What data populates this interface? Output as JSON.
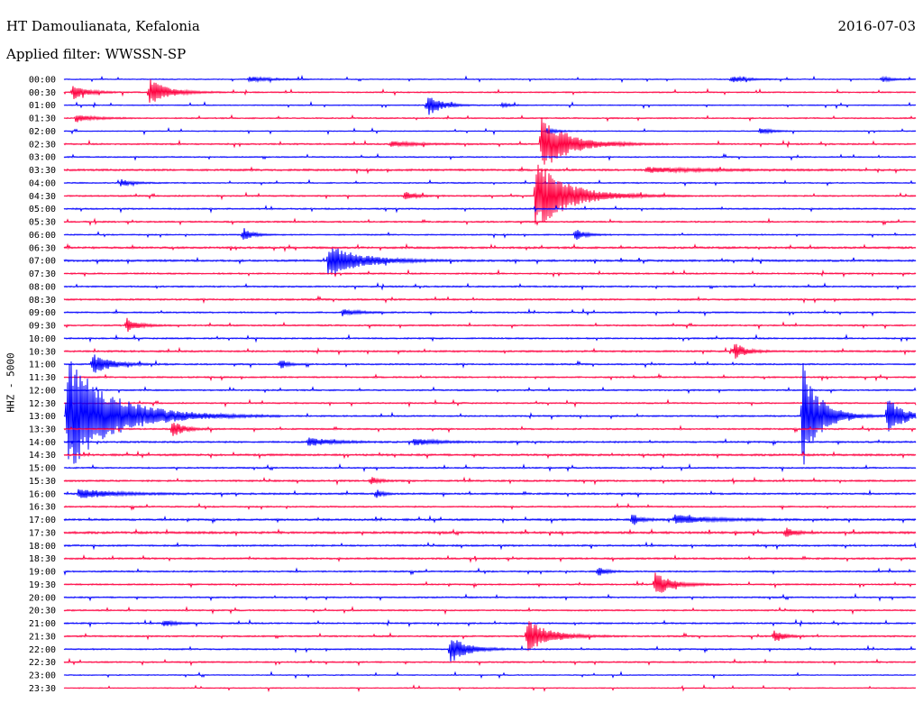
{
  "header": {
    "station": "HT Damoulianata, Kefalonia",
    "date": "2016-07-03",
    "filter": "Applied filter: WWSSN-SP"
  },
  "channel_label": "HHZ - 5000",
  "colors": {
    "even_rows": "#0000ff",
    "odd_rows": "#ff0040",
    "background": "#ffffff"
  },
  "chart_data": {
    "type": "line",
    "title": "HT Damoulianata, Kefalonia",
    "ylabel": "HHZ - 5000",
    "row_labels": [
      "00:00",
      "00:30",
      "01:00",
      "01:30",
      "02:00",
      "02:30",
      "03:00",
      "03:30",
      "04:00",
      "04:30",
      "05:00",
      "05:30",
      "06:00",
      "06:30",
      "07:00",
      "07:30",
      "08:00",
      "08:30",
      "09:00",
      "09:30",
      "10:00",
      "10:30",
      "11:00",
      "11:30",
      "12:00",
      "12:30",
      "13:00",
      "13:30",
      "14:00",
      "14:30",
      "15:00",
      "15:30",
      "16:00",
      "16:30",
      "17:00",
      "17:30",
      "18:00",
      "18:30",
      "19:00",
      "19:30",
      "20:00",
      "20:30",
      "21:00",
      "21:30",
      "22:00",
      "22:30",
      "23:00",
      "23:30"
    ],
    "row_minutes": 30,
    "x_range_minutes": [
      0,
      30
    ],
    "noise": [
      0.4,
      0.5,
      0.4,
      0.5,
      0.4,
      0.6,
      0.5,
      0.8,
      0.5,
      0.6,
      0.6,
      0.6,
      0.5,
      0.8,
      0.8,
      0.6,
      0.6,
      0.7,
      0.6,
      0.6,
      0.6,
      0.7,
      0.6,
      0.6,
      0.6,
      0.6,
      0.6,
      0.6,
      0.7,
      0.8,
      0.6,
      0.7,
      0.7,
      0.6,
      0.8,
      0.9,
      0.7,
      0.7,
      0.6,
      0.6,
      0.6,
      0.6,
      0.6,
      0.6,
      0.6,
      0.6,
      0.4,
      0.4
    ],
    "events": [
      {
        "row": "00:00",
        "minute": 6.5,
        "amplitude": 3,
        "duration": 1.2
      },
      {
        "row": "00:00",
        "minute": 23.5,
        "amplitude": 4,
        "duration": 0.8
      },
      {
        "row": "00:00",
        "minute": 28.8,
        "amplitude": 3,
        "duration": 0.6
      },
      {
        "row": "00:30",
        "minute": 0.3,
        "amplitude": 8,
        "duration": 0.8
      },
      {
        "row": "00:30",
        "minute": 3.0,
        "amplitude": 15,
        "duration": 1.0
      },
      {
        "row": "01:00",
        "minute": 12.8,
        "amplitude": 14,
        "duration": 0.7
      },
      {
        "row": "01:00",
        "minute": 15.4,
        "amplitude": 3,
        "duration": 0.4
      },
      {
        "row": "01:30",
        "minute": 0.4,
        "amplitude": 4,
        "duration": 1.0
      },
      {
        "row": "02:00",
        "minute": 17.0,
        "amplitude": 3,
        "duration": 0.6
      },
      {
        "row": "02:00",
        "minute": 24.5,
        "amplitude": 4,
        "duration": 0.6
      },
      {
        "row": "02:30",
        "minute": 16.8,
        "amplitude": 32,
        "duration": 1.5
      },
      {
        "row": "02:30",
        "minute": 11.5,
        "amplitude": 3,
        "duration": 1.5
      },
      {
        "row": "03:30",
        "minute": 20.5,
        "amplitude": 3,
        "duration": 3.0
      },
      {
        "row": "04:00",
        "minute": 2.0,
        "amplitude": 4,
        "duration": 0.6
      },
      {
        "row": "04:30",
        "minute": 16.6,
        "amplitude": 40,
        "duration": 1.8
      },
      {
        "row": "04:30",
        "minute": 12.0,
        "amplitude": 6,
        "duration": 0.5
      },
      {
        "row": "06:00",
        "minute": 6.3,
        "amplitude": 8,
        "duration": 0.5
      },
      {
        "row": "06:00",
        "minute": 18.0,
        "amplitude": 7,
        "duration": 0.5
      },
      {
        "row": "07:00",
        "minute": 9.3,
        "amplitude": 18,
        "duration": 1.8
      },
      {
        "row": "09:00",
        "minute": 9.8,
        "amplitude": 4,
        "duration": 0.8
      },
      {
        "row": "09:30",
        "minute": 2.2,
        "amplitude": 9,
        "duration": 0.6
      },
      {
        "row": "10:30",
        "minute": 23.6,
        "amplitude": 10,
        "duration": 0.6
      },
      {
        "row": "11:00",
        "minute": 1.0,
        "amplitude": 12,
        "duration": 1.0
      },
      {
        "row": "11:00",
        "minute": 7.6,
        "amplitude": 6,
        "duration": 0.4
      },
      {
        "row": "13:00",
        "minute": 0.1,
        "amplitude": 70,
        "duration": 2.5
      },
      {
        "row": "13:00",
        "minute": 26.0,
        "amplitude": 60,
        "duration": 1.0
      },
      {
        "row": "13:00",
        "minute": 29.0,
        "amplitude": 25,
        "duration": 0.8
      },
      {
        "row": "13:30",
        "minute": 3.8,
        "amplitude": 10,
        "duration": 0.6
      },
      {
        "row": "14:00",
        "minute": 8.6,
        "amplitude": 5,
        "duration": 1.2
      },
      {
        "row": "14:00",
        "minute": 12.3,
        "amplitude": 4,
        "duration": 1.2
      },
      {
        "row": "15:30",
        "minute": 10.8,
        "amplitude": 5,
        "duration": 0.4
      },
      {
        "row": "16:00",
        "minute": 0.5,
        "amplitude": 5,
        "duration": 2.0
      },
      {
        "row": "16:00",
        "minute": 11.0,
        "amplitude": 6,
        "duration": 0.3
      },
      {
        "row": "17:00",
        "minute": 20.0,
        "amplitude": 7,
        "duration": 0.5
      },
      {
        "row": "17:00",
        "minute": 21.5,
        "amplitude": 5,
        "duration": 2.0
      },
      {
        "row": "17:30",
        "minute": 25.4,
        "amplitude": 6,
        "duration": 0.5
      },
      {
        "row": "19:00",
        "minute": 18.8,
        "amplitude": 7,
        "duration": 0.4
      },
      {
        "row": "19:30",
        "minute": 20.8,
        "amplitude": 14,
        "duration": 0.9
      },
      {
        "row": "21:00",
        "minute": 3.5,
        "amplitude": 4,
        "duration": 0.6
      },
      {
        "row": "21:30",
        "minute": 16.3,
        "amplitude": 20,
        "duration": 1.2
      },
      {
        "row": "21:30",
        "minute": 25.0,
        "amplitude": 8,
        "duration": 0.5
      },
      {
        "row": "22:00",
        "minute": 13.6,
        "amplitude": 16,
        "duration": 0.9
      }
    ]
  }
}
